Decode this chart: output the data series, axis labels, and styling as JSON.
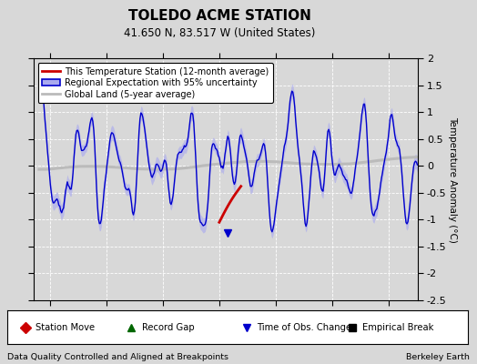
{
  "title": "TOLEDO ACME STATION",
  "subtitle": "41.650 N, 83.517 W (United States)",
  "ylabel": "Temperature Anomaly (°C)",
  "xlabel_left": "Data Quality Controlled and Aligned at Breakpoints",
  "xlabel_right": "Berkeley Earth",
  "ylim": [
    -2.5,
    2.0
  ],
  "xlim": [
    1933.5,
    1967.5
  ],
  "xticks": [
    1935,
    1940,
    1945,
    1950,
    1955,
    1960,
    1965
  ],
  "yticks": [
    -2.5,
    -2.0,
    -1.5,
    -1.0,
    -0.5,
    0.0,
    0.5,
    1.0,
    1.5,
    2.0
  ],
  "bg_color": "#d8d8d8",
  "plot_bg_color": "#d8d8d8",
  "regional_color": "#0000cc",
  "regional_fill_color": "#aaaaee",
  "station_color": "#cc0000",
  "global_color": "#bbbbbb",
  "legend_items": [
    {
      "label": "This Temperature Station (12-month average)",
      "color": "#cc0000",
      "lw": 2
    },
    {
      "label": "Regional Expectation with 95% uncertainty",
      "color": "#0000cc",
      "fill": "#aaaaee"
    },
    {
      "label": "Global Land (5-year average)",
      "color": "#bbbbbb",
      "lw": 2
    }
  ],
  "marker_legend": [
    {
      "label": "Station Move",
      "color": "#cc0000",
      "marker": "D"
    },
    {
      "label": "Record Gap",
      "color": "#006600",
      "marker": "^"
    },
    {
      "label": "Time of Obs. Change",
      "color": "#0000cc",
      "marker": "v"
    },
    {
      "label": "Empirical Break",
      "color": "#000000",
      "marker": "s"
    }
  ]
}
